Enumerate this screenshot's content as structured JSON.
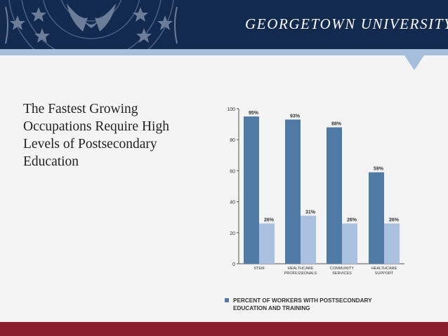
{
  "header": {
    "brand": "GEORGETOWN UNIVERSITY",
    "colors": {
      "navy": "#132a4f",
      "band": "#a6bfdc",
      "footer": "#8a1f2e"
    }
  },
  "slide": {
    "title_lines": [
      "The Fastest Growing",
      "Occupations Require High",
      "Levels of Postsecondary",
      "Education"
    ]
  },
  "chart_data": {
    "type": "bar",
    "categories": [
      [
        "STEM"
      ],
      [
        "HEALTHCARE",
        "PROFESSIONALS"
      ],
      [
        "COMMUNITY",
        "SERVICES"
      ],
      [
        "HEALTHCARE",
        "SUPPORT"
      ]
    ],
    "series": [
      {
        "values": [
          95,
          93,
          88,
          59
        ],
        "labels": [
          "95%",
          "93%",
          "88%",
          "59%"
        ],
        "color": "#4f7aa6"
      },
      {
        "values": [
          26,
          31,
          26,
          26
        ],
        "labels": [
          "26%",
          "31%",
          "26%",
          "26%"
        ],
        "color": "#a9c1de"
      }
    ],
    "ylim": [
      0,
      100
    ],
    "yticks": [
      "0",
      "20",
      "40",
      "60",
      "80",
      "100"
    ],
    "grid": false,
    "legend": {
      "position": "bottom",
      "lines": [
        "PERCENT OF WORKERS WITH POSTSECONDARY",
        "EDUCATION AND TRAINING"
      ],
      "color": "#4f7aa6"
    }
  }
}
